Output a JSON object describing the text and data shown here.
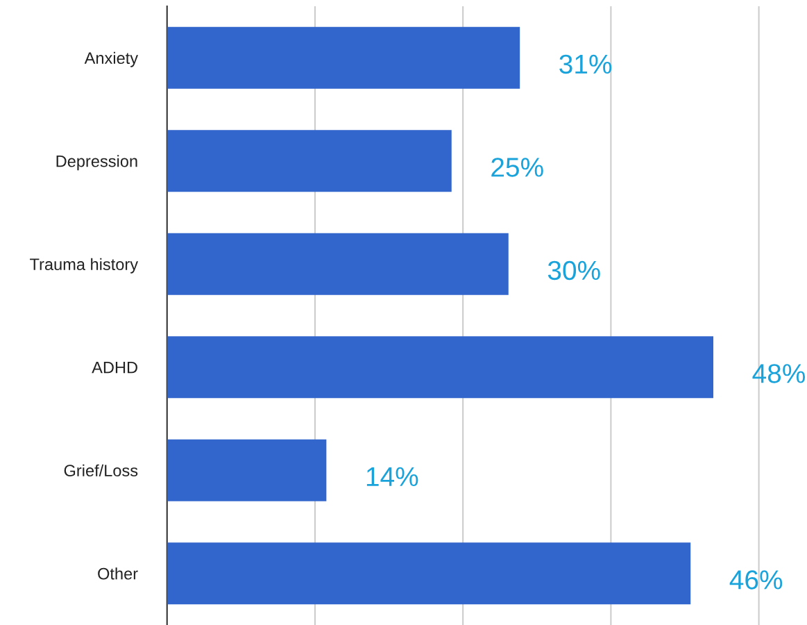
{
  "chart_data": {
    "type": "bar",
    "orientation": "horizontal",
    "categories": [
      "Anxiety",
      "Depression",
      "Trauma history",
      "ADHD",
      "Grief/Loss",
      "Other"
    ],
    "values": [
      31,
      25,
      30,
      48,
      14,
      46
    ],
    "value_labels": [
      "31%",
      "25%",
      "30%",
      "48%",
      "14%",
      "46%"
    ],
    "color": "#3366cc",
    "xticks": [
      {
        "value": 13,
        "label": null
      },
      {
        "value": 26,
        "label": null
      },
      {
        "value": 39,
        "label": null
      },
      {
        "value": 52,
        "label": null
      }
    ],
    "grid": "x",
    "tick_labels": "y"
  }
}
